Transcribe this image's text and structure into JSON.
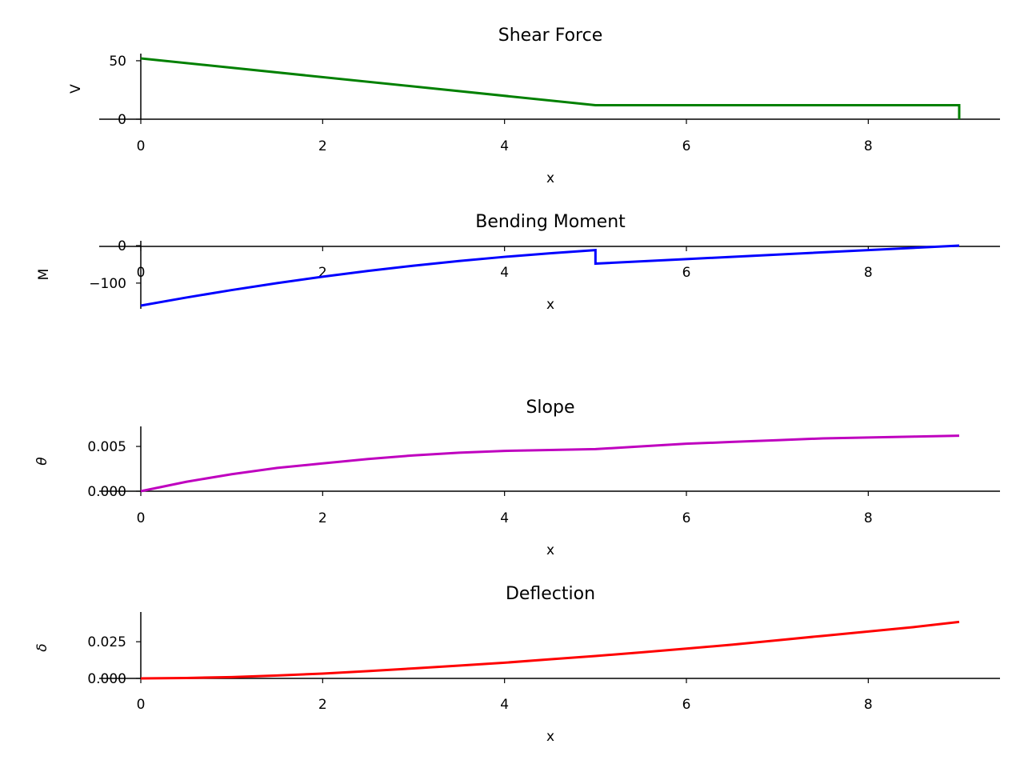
{
  "chart_data": [
    {
      "type": "line",
      "title": "Shear Force",
      "xlabel": "x",
      "ylabel": "V",
      "color": "#008000",
      "xticks": [
        0,
        2,
        4,
        6,
        8
      ],
      "yticks": [
        0,
        50
      ],
      "ytick_labels": [
        "0",
        "50"
      ],
      "xlim": [
        0,
        9
      ],
      "ylim": [
        0,
        52
      ],
      "series": [
        {
          "x": [
            0,
            5,
            5,
            9,
            9
          ],
          "y": [
            52,
            12,
            12,
            12,
            0
          ]
        }
      ]
    },
    {
      "type": "line",
      "title": "Bending Moment",
      "xlabel": "x",
      "ylabel": "M",
      "color": "#0000ff",
      "xticks": [
        0,
        2,
        4,
        6,
        8
      ],
      "yticks": [
        0,
        -100
      ],
      "ytick_labels": [
        "0",
        "−100"
      ],
      "xlim": [
        0,
        9
      ],
      "ylim": [
        -160,
        0
      ],
      "series": [
        {
          "x": [
            0,
            0.5,
            1,
            1.5,
            2,
            2.5,
            3,
            3.5,
            4,
            4.5,
            5,
            5,
            6,
            7,
            8,
            9
          ],
          "y": [
            -160,
            -138.5,
            -118.5,
            -100,
            -83,
            -67.5,
            -53.5,
            -41,
            -30,
            -20.5,
            -12,
            -48,
            -36,
            -24,
            -12,
            0
          ]
        }
      ]
    },
    {
      "type": "line",
      "title": "Slope",
      "xlabel": "x",
      "ylabel": "θ",
      "color": "#bf00bf",
      "xticks": [
        0,
        2,
        4,
        6,
        8
      ],
      "yticks": [
        0,
        0.005
      ],
      "ytick_labels": [
        "0.000",
        "0.005"
      ],
      "xlim": [
        0,
        9
      ],
      "ylim": [
        0,
        0.0067
      ],
      "series": [
        {
          "x": [
            0,
            0.5,
            1,
            1.5,
            2,
            2.5,
            3,
            3.5,
            4,
            4.5,
            5,
            5.5,
            6,
            6.5,
            7,
            7.5,
            8,
            8.5,
            9
          ],
          "y": [
            0,
            0.00105,
            0.0019,
            0.0026,
            0.0031,
            0.0036,
            0.004,
            0.0043,
            0.0045,
            0.0046,
            0.0047,
            0.005,
            0.0053,
            0.0055,
            0.0057,
            0.0059,
            0.006,
            0.0061,
            0.0062
          ]
        }
      ]
    },
    {
      "type": "line",
      "title": "Deflection",
      "xlabel": "x",
      "ylabel": "δ",
      "color": "#ff0000",
      "xticks": [
        0,
        2,
        4,
        6,
        8
      ],
      "yticks": [
        0,
        0.025
      ],
      "ytick_labels": [
        "0.000",
        "0.025"
      ],
      "xlim": [
        0,
        9
      ],
      "ylim": [
        0,
        0.042
      ],
      "series": [
        {
          "x": [
            0,
            0.5,
            1,
            1.5,
            2,
            2.5,
            3,
            3.5,
            4,
            4.5,
            5,
            5.5,
            6,
            6.5,
            7,
            7.5,
            8,
            8.5,
            9
          ],
          "y": [
            0,
            0.0003,
            0.0009,
            0.002,
            0.0033,
            0.005,
            0.0068,
            0.0087,
            0.0107,
            0.013,
            0.0153,
            0.0177,
            0.0203,
            0.023,
            0.026,
            0.029,
            0.032,
            0.035,
            0.0385
          ]
        }
      ]
    }
  ]
}
